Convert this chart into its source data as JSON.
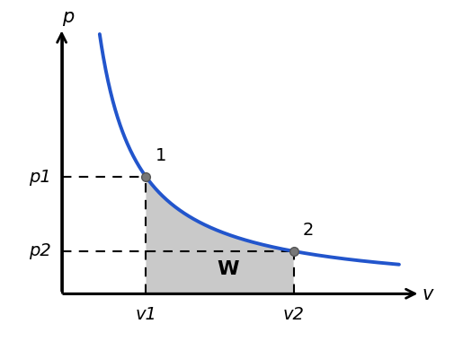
{
  "bg_color": "#ffffff",
  "curve_color": "#2255cc",
  "curve_linewidth": 2.8,
  "shade_color": "#c0c0c0",
  "shade_alpha": 0.85,
  "dashed_color": "#000000",
  "dashed_lw": 1.5,
  "point_color": "#777777",
  "point_edgecolor": "#555555",
  "point_size": 7,
  "v1": 2.0,
  "v2": 5.5,
  "p1": 3.3,
  "p2": 1.2,
  "v_axis_start": 0.0,
  "v_axis_end": 8.5,
  "p_axis_start": 0.0,
  "p_axis_end": 7.5,
  "v_curve_start": 0.9,
  "v_curve_end": 8.0,
  "label_p": "p",
  "label_v": "v",
  "label_p1": "p1",
  "label_p2": "p2",
  "label_v1": "v1",
  "label_v2": "v2",
  "label_1": "1",
  "label_2": "2",
  "label_W": "W",
  "font_size_axis": 15,
  "font_size_tick": 14,
  "font_size_W": 16,
  "arrow_color": "#000000",
  "axis_lw": 2.0,
  "xlim": [
    -0.6,
    9.0
  ],
  "ylim": [
    -0.8,
    8.0
  ],
  "origin_x": 0.0,
  "origin_y": 0.0
}
